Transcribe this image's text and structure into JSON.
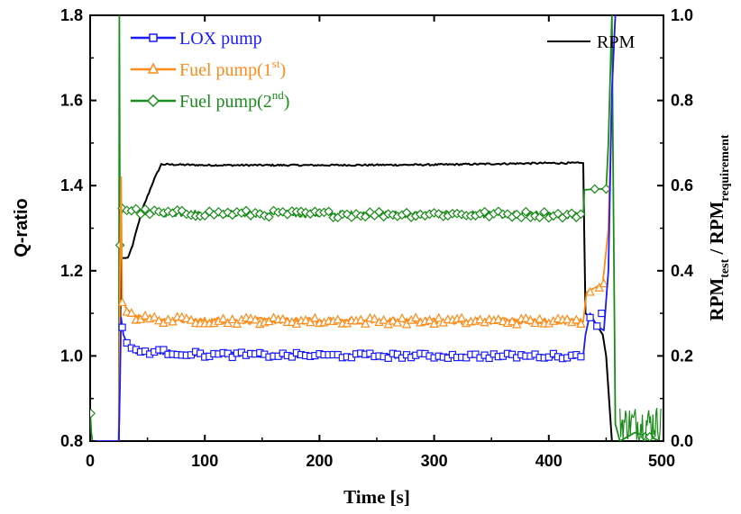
{
  "chart_data": {
    "type": "line",
    "xlabel": "Time [s]",
    "ylabel_left": "Q-ratio",
    "ylabel_right": {
      "main": "RPM",
      "sub1": "test",
      "sep": " / RPM",
      "sub2": "requirement"
    },
    "xlim": [
      0,
      500
    ],
    "ylim_left": [
      0.8,
      1.8
    ],
    "ylim_right": [
      0.0,
      1.0
    ],
    "x_ticks": [
      "0",
      "100",
      "200",
      "300",
      "400",
      "500"
    ],
    "y_left_ticks": [
      "0.8",
      "1.0",
      "1.2",
      "1.4",
      "1.6",
      "1.8"
    ],
    "y_right_ticks": [
      "0.0",
      "0.2",
      "0.4",
      "0.6",
      "0.8",
      "1.0"
    ],
    "legend": {
      "placement": "top-left",
      "entries": [
        {
          "text": "LOX pump",
          "sup": "",
          "tail": "",
          "color": "#1a1aff",
          "marker": "square"
        },
        {
          "text": "Fuel pump(1",
          "sup": "st",
          "tail": ")",
          "color": "#ff8c1a",
          "marker": "triangle"
        },
        {
          "text": "Fuel pump(2",
          "sup": "nd",
          "tail": ")",
          "color": "#1a8c1a",
          "marker": "diamond"
        }
      ]
    },
    "legend_right": {
      "placement": "top-right",
      "text": "RPM",
      "color": "#000000"
    },
    "series": [
      {
        "name": "LOX pump",
        "axis": "left",
        "color": "#1a1aff",
        "marker": "square",
        "points": [
          [
            0,
            0.8
          ],
          [
            25,
            0.8
          ],
          [
            26,
            0.93
          ],
          [
            27,
            1.09
          ],
          [
            29,
            1.05
          ],
          [
            32,
            1.03
          ],
          [
            40,
            1.01
          ],
          [
            60,
            1.01
          ],
          [
            100,
            1.003
          ],
          [
            200,
            1.001
          ],
          [
            300,
            1.0
          ],
          [
            400,
            1.0
          ],
          [
            430,
            1.0
          ],
          [
            432,
            1.05
          ],
          [
            436,
            1.1
          ],
          [
            442,
            1.07
          ],
          [
            448,
            1.06
          ],
          [
            452,
            1.2
          ],
          [
            455,
            1.62
          ],
          [
            458,
            1.8
          ]
        ]
      },
      {
        "name": "Fuel pump(1st)",
        "axis": "left",
        "color": "#ff8c1a",
        "marker": "triangle",
        "points": [
          [
            0,
            0.8
          ],
          [
            25,
            0.8
          ],
          [
            26,
            1.2
          ],
          [
            27,
            1.42
          ],
          [
            28,
            1.13
          ],
          [
            32,
            1.11
          ],
          [
            40,
            1.09
          ],
          [
            60,
            1.085
          ],
          [
            100,
            1.083
          ],
          [
            200,
            1.082
          ],
          [
            300,
            1.082
          ],
          [
            400,
            1.081
          ],
          [
            430,
            1.08
          ],
          [
            433,
            1.15
          ],
          [
            440,
            1.16
          ],
          [
            447,
            1.17
          ],
          [
            452,
            1.3
          ],
          [
            455,
            1.62
          ],
          [
            458,
            1.8
          ]
        ]
      },
      {
        "name": "Fuel pump(2nd)",
        "axis": "left",
        "color": "#1a8c1a",
        "marker": "diamond",
        "points": [
          [
            0,
            0.87
          ],
          [
            1,
            0.82
          ],
          [
            2,
            0.8
          ],
          [
            25,
            0.8
          ],
          [
            25.5,
            1.8
          ],
          [
            26,
            1.26
          ],
          [
            27,
            1.35
          ],
          [
            30,
            1.345
          ],
          [
            40,
            1.34
          ],
          [
            60,
            1.335
          ],
          [
            100,
            1.335
          ],
          [
            200,
            1.333
          ],
          [
            300,
            1.333
          ],
          [
            400,
            1.332
          ],
          [
            430,
            1.33
          ],
          [
            431,
            1.39
          ],
          [
            440,
            1.392
          ],
          [
            450,
            1.392
          ],
          [
            452,
            1.5
          ],
          [
            455,
            1.8
          ],
          [
            458,
            0.84
          ],
          [
            462,
            0.8
          ],
          [
            475,
            0.82
          ],
          [
            488,
            0.81
          ],
          [
            497,
            0.8
          ]
        ]
      },
      {
        "name": "RPM",
        "axis": "right",
        "color": "#000000",
        "marker": "none",
        "points": [
          [
            0,
            0.0
          ],
          [
            25,
            0.0
          ],
          [
            27,
            0.43
          ],
          [
            31,
            0.43
          ],
          [
            33,
            0.431
          ],
          [
            37,
            0.46
          ],
          [
            45,
            0.54
          ],
          [
            55,
            0.61
          ],
          [
            62,
            0.65
          ],
          [
            100,
            0.648
          ],
          [
            200,
            0.648
          ],
          [
            300,
            0.649
          ],
          [
            400,
            0.653
          ],
          [
            430,
            0.653
          ],
          [
            432,
            0.3
          ],
          [
            440,
            0.28
          ],
          [
            447,
            0.25
          ],
          [
            450,
            0.2
          ],
          [
            455,
            0.0
          ],
          [
            500,
            0.0
          ]
        ]
      }
    ]
  }
}
